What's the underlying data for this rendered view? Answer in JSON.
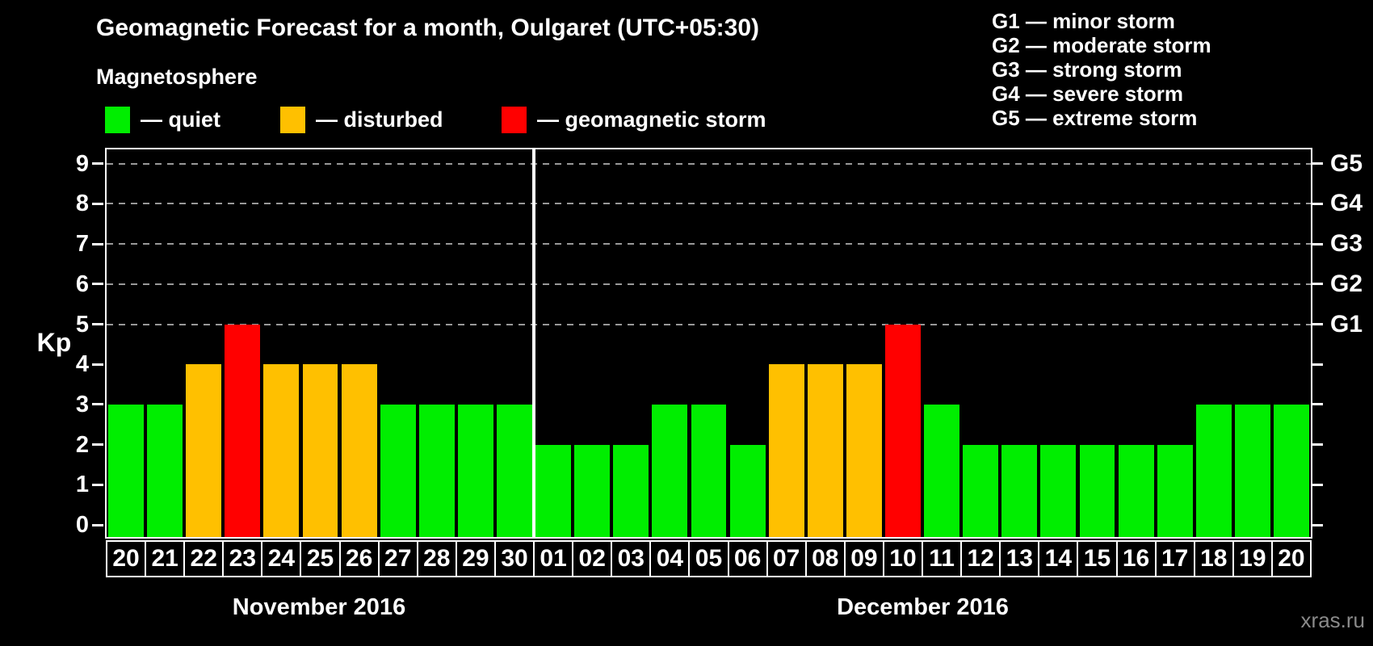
{
  "header": {
    "title": "Geomagnetic Forecast for a month, Oulgaret (UTC+05:30)",
    "subtitle": "Magnetosphere"
  },
  "legend": {
    "items": [
      {
        "label": "— quiet",
        "status": "quiet"
      },
      {
        "label": "— disturbed",
        "status": "disturbed"
      },
      {
        "label": "— geomagnetic storm",
        "status": "storm"
      }
    ]
  },
  "g_legend": {
    "items": [
      "G1 — minor storm",
      "G2 — moderate storm",
      "G3 — strong storm",
      "G4 — severe storm",
      "G5 — extreme storm"
    ]
  },
  "chart_data": {
    "type": "bar",
    "title": "Geomagnetic Forecast for a month, Oulgaret (UTC+05:30)",
    "ylabel": "Kp",
    "ylim": [
      0,
      9
    ],
    "yticks": [
      0,
      1,
      2,
      3,
      4,
      5,
      6,
      7,
      8,
      9
    ],
    "gridlines_at": [
      5,
      6,
      7,
      8,
      9
    ],
    "grid": "dashed",
    "legend_position": "top",
    "right_axis_labels": [
      {
        "level": 5,
        "label": "G1"
      },
      {
        "level": 6,
        "label": "G2"
      },
      {
        "level": 7,
        "label": "G3"
      },
      {
        "level": 8,
        "label": "G4"
      },
      {
        "level": 9,
        "label": "G5"
      }
    ],
    "status_colors": {
      "quiet": "#00ee00",
      "disturbed": "#ffc000",
      "storm": "#ff0000"
    },
    "groups": [
      {
        "month": "November 2016",
        "days": [
          "20",
          "21",
          "22",
          "23",
          "24",
          "25",
          "26",
          "27",
          "28",
          "29",
          "30"
        ],
        "values": [
          3,
          3,
          4,
          5,
          4,
          4,
          4,
          3,
          3,
          3,
          3
        ],
        "status": [
          "quiet",
          "quiet",
          "disturbed",
          "storm",
          "disturbed",
          "disturbed",
          "disturbed",
          "quiet",
          "quiet",
          "quiet",
          "quiet"
        ]
      },
      {
        "month": "December 2016",
        "days": [
          "01",
          "02",
          "03",
          "04",
          "05",
          "06",
          "07",
          "08",
          "09",
          "10",
          "11",
          "12",
          "13",
          "14",
          "15",
          "16",
          "17",
          "18",
          "19",
          "20"
        ],
        "values": [
          2,
          2,
          2,
          3,
          3,
          2,
          4,
          4,
          4,
          5,
          3,
          2,
          2,
          2,
          2,
          2,
          2,
          3,
          3,
          3
        ],
        "status": [
          "quiet",
          "quiet",
          "quiet",
          "quiet",
          "quiet",
          "quiet",
          "disturbed",
          "disturbed",
          "disturbed",
          "storm",
          "quiet",
          "quiet",
          "quiet",
          "quiet",
          "quiet",
          "quiet",
          "quiet",
          "quiet",
          "quiet",
          "quiet"
        ]
      }
    ]
  },
  "watermark": "xras.ru",
  "colors": {
    "background": "#000000",
    "text": "#ffffff",
    "grid": "#999999",
    "axis": "#ffffff",
    "watermark": "#8a8a8a"
  }
}
